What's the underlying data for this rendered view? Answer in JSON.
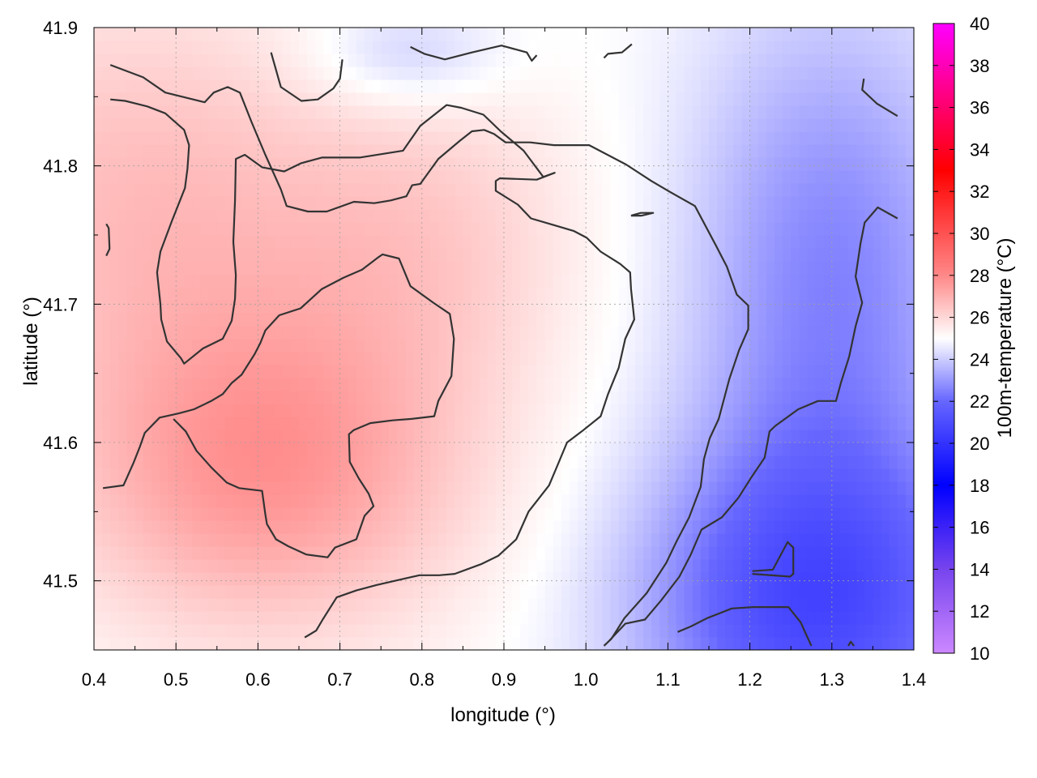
{
  "chart_data": {
    "type": "heatmap",
    "title": "",
    "xlabel": "longitude (°)",
    "ylabel": "latitude (°)",
    "colorbar_label": "100m-temperature (°C)",
    "xlim": [
      0.4,
      1.4
    ],
    "ylim": [
      41.45,
      41.9
    ],
    "x_ticks": [
      0.4,
      0.5,
      0.6,
      0.7,
      0.8,
      0.9,
      1.0,
      1.1,
      1.2,
      1.3,
      1.4
    ],
    "x_tick_labels": [
      "0.4",
      "0.5",
      "0.6",
      "0.7",
      "0.8",
      "0.9",
      "1.0",
      "1.1",
      "1.2",
      "1.3",
      "1.4"
    ],
    "y_ticks": [
      41.5,
      41.6,
      41.7,
      41.8,
      41.9
    ],
    "y_tick_labels": [
      "41.5",
      "41.6",
      "41.7",
      "41.8",
      "41.9"
    ],
    "colorbar_range": [
      10,
      40
    ],
    "colorbar_ticks": [
      10,
      12,
      14,
      16,
      18,
      20,
      22,
      24,
      26,
      28,
      30,
      32,
      34,
      36,
      38,
      40
    ],
    "colorbar_tick_labels": [
      "10",
      "12",
      "14",
      "16",
      "18",
      "20",
      "22",
      "24",
      "26",
      "28",
      "30",
      "32",
      "34",
      "36",
      "38",
      "40"
    ],
    "colormap": [
      {
        "value": 10,
        "color": "#cc88ff"
      },
      {
        "value": 14,
        "color": "#7744ee"
      },
      {
        "value": 18,
        "color": "#0000ff"
      },
      {
        "value": 22,
        "color": "#6666ff"
      },
      {
        "value": 25,
        "color": "#ffffff"
      },
      {
        "value": 28,
        "color": "#ff8888"
      },
      {
        "value": 33,
        "color": "#ff0000"
      },
      {
        "value": 40,
        "color": "#ff00ff"
      }
    ],
    "grid": true,
    "contour_color": "#333333",
    "field": {
      "description_free": true,
      "base": 25,
      "blobs": [
        {
          "lon": 0.61,
          "lat": 41.58,
          "amp": 2.6,
          "sx": 0.25,
          "sy": 0.12
        },
        {
          "lon": 0.45,
          "lat": 41.78,
          "amp": 1.6,
          "sx": 0.25,
          "sy": 0.15
        },
        {
          "lon": 0.8,
          "lat": 41.75,
          "amp": 1.2,
          "sx": 0.2,
          "sy": 0.12
        },
        {
          "lon": 1.28,
          "lat": 41.48,
          "amp": -3.8,
          "sx": 0.22,
          "sy": 0.12
        },
        {
          "lon": 1.3,
          "lat": 41.72,
          "amp": -2.4,
          "sx": 0.18,
          "sy": 0.2
        },
        {
          "lon": 0.78,
          "lat": 41.88,
          "amp": -1.2,
          "sx": 0.12,
          "sy": 0.04
        }
      ]
    },
    "contours": [
      [
        [
          0.42,
          41.873
        ],
        [
          0.46,
          41.864
        ],
        [
          0.487,
          41.853
        ],
        [
          0.535,
          41.846
        ],
        [
          0.546,
          41.853
        ],
        [
          0.563,
          41.857
        ],
        [
          0.578,
          41.853
        ],
        [
          0.592,
          41.832
        ],
        [
          0.609,
          41.808
        ],
        [
          0.628,
          41.783
        ],
        [
          0.635,
          41.771
        ],
        [
          0.661,
          41.767
        ],
        [
          0.684,
          41.767
        ],
        [
          0.717,
          41.774
        ],
        [
          0.742,
          41.773
        ],
        [
          0.762,
          41.775
        ],
        [
          0.781,
          41.778
        ],
        [
          0.788,
          41.786
        ],
        [
          0.798,
          41.787
        ],
        [
          0.82,
          41.805
        ],
        [
          0.846,
          41.818
        ],
        [
          0.861,
          41.825
        ],
        [
          0.876,
          41.826
        ],
        [
          0.888,
          41.823
        ],
        [
          0.902,
          41.817
        ],
        [
          0.932,
          41.817
        ],
        [
          0.961,
          41.815
        ],
        [
          1.004,
          41.815
        ],
        [
          1.049,
          41.801
        ],
        [
          1.08,
          41.789
        ],
        [
          1.103,
          41.781
        ],
        [
          1.133,
          41.771
        ],
        [
          1.159,
          41.742
        ],
        [
          1.172,
          41.727
        ],
        [
          1.184,
          41.707
        ],
        [
          1.198,
          41.699
        ],
        [
          1.198,
          41.682
        ],
        [
          1.187,
          41.667
        ],
        [
          1.175,
          41.646
        ],
        [
          1.162,
          41.617
        ],
        [
          1.151,
          41.603
        ],
        [
          1.144,
          41.588
        ],
        [
          1.14,
          41.568
        ],
        [
          1.126,
          41.546
        ],
        [
          1.111,
          41.529
        ],
        [
          1.098,
          41.513
        ],
        [
          1.074,
          41.491
        ],
        [
          1.047,
          41.473
        ],
        [
          1.031,
          41.458
        ],
        [
          1.022,
          41.453
        ]
      ],
      [
        [
          0.42,
          41.848
        ],
        [
          0.438,
          41.847
        ],
        [
          0.465,
          41.843
        ],
        [
          0.487,
          41.838
        ],
        [
          0.51,
          41.826
        ],
        [
          0.516,
          41.815
        ],
        [
          0.514,
          41.798
        ],
        [
          0.511,
          41.784
        ],
        [
          0.495,
          41.76
        ],
        [
          0.481,
          41.738
        ],
        [
          0.477,
          41.723
        ],
        [
          0.481,
          41.7
        ],
        [
          0.482,
          41.689
        ],
        [
          0.489,
          41.673
        ],
        [
          0.506,
          41.661
        ],
        [
          0.51,
          41.657
        ],
        [
          0.533,
          41.668
        ],
        [
          0.557,
          41.675
        ],
        [
          0.568,
          41.688
        ],
        [
          0.572,
          41.704
        ],
        [
          0.573,
          41.721
        ],
        [
          0.57,
          41.745
        ],
        [
          0.572,
          41.775
        ],
        [
          0.573,
          41.805
        ],
        [
          0.584,
          41.808
        ],
        [
          0.605,
          41.799
        ],
        [
          0.632,
          41.796
        ],
        [
          0.653,
          41.802
        ],
        [
          0.678,
          41.806
        ],
        [
          0.724,
          41.806
        ],
        [
          0.777,
          41.811
        ],
        [
          0.798,
          41.829
        ],
        [
          0.83,
          41.844
        ],
        [
          0.848,
          41.842
        ],
        [
          0.875,
          41.837
        ],
        [
          0.896,
          41.825
        ],
        [
          0.924,
          41.811
        ],
        [
          0.948,
          41.792
        ],
        [
          0.962,
          41.795
        ],
        [
          0.94,
          41.79
        ],
        [
          0.895,
          41.791
        ],
        [
          0.89,
          41.789
        ],
        [
          0.89,
          41.782
        ],
        [
          0.917,
          41.772
        ],
        [
          0.933,
          41.762
        ],
        [
          0.962,
          41.757
        ],
        [
          0.985,
          41.753
        ],
        [
          1.001,
          41.748
        ],
        [
          1.018,
          41.738
        ],
        [
          1.042,
          41.729
        ],
        [
          1.054,
          41.723
        ],
        [
          1.055,
          41.711
        ],
        [
          1.059,
          41.689
        ],
        [
          1.048,
          41.675
        ],
        [
          1.04,
          41.654
        ],
        [
          1.027,
          41.635
        ],
        [
          1.018,
          41.619
        ],
        [
          0.995,
          41.608
        ],
        [
          0.977,
          41.6
        ],
        [
          0.965,
          41.583
        ],
        [
          0.955,
          41.569
        ],
        [
          0.93,
          41.55
        ],
        [
          0.915,
          41.53
        ],
        [
          0.893,
          41.518
        ],
        [
          0.872,
          41.512
        ],
        [
          0.84,
          41.505
        ],
        [
          0.821,
          41.504
        ],
        [
          0.797,
          41.504
        ],
        [
          0.767,
          41.5
        ],
        [
          0.745,
          41.497
        ],
        [
          0.72,
          41.493
        ],
        [
          0.696,
          41.488
        ],
        [
          0.679,
          41.472
        ],
        [
          0.671,
          41.464
        ],
        [
          0.657,
          41.459
        ]
      ],
      [
        [
          0.415,
          41.758
        ],
        [
          0.418,
          41.755
        ],
        [
          0.419,
          41.74
        ],
        [
          0.415,
          41.735
        ]
      ],
      [
        [
          0.411,
          41.567
        ],
        [
          0.436,
          41.569
        ],
        [
          0.448,
          41.585
        ],
        [
          0.456,
          41.597
        ],
        [
          0.462,
          41.607
        ],
        [
          0.48,
          41.618
        ],
        [
          0.503,
          41.621
        ],
        [
          0.522,
          41.624
        ],
        [
          0.543,
          41.63
        ],
        [
          0.557,
          41.635
        ],
        [
          0.568,
          41.643
        ],
        [
          0.58,
          41.649
        ],
        [
          0.596,
          41.664
        ],
        [
          0.603,
          41.672
        ],
        [
          0.609,
          41.681
        ],
        [
          0.626,
          41.692
        ],
        [
          0.652,
          41.697
        ],
        [
          0.678,
          41.711
        ],
        [
          0.704,
          41.719
        ],
        [
          0.727,
          41.725
        ],
        [
          0.747,
          41.734
        ],
        [
          0.752,
          41.736
        ],
        [
          0.772,
          41.733
        ],
        [
          0.786,
          41.713
        ],
        [
          0.814,
          41.701
        ],
        [
          0.834,
          41.693
        ],
        [
          0.839,
          41.675
        ],
        [
          0.836,
          41.648
        ],
        [
          0.82,
          41.63
        ],
        [
          0.815,
          41.619
        ],
        [
          0.786,
          41.617
        ],
        [
          0.764,
          41.616
        ],
        [
          0.737,
          41.614
        ],
        [
          0.717,
          41.609
        ],
        [
          0.711,
          41.606
        ],
        [
          0.712,
          41.586
        ],
        [
          0.723,
          41.574
        ],
        [
          0.735,
          41.563
        ],
        [
          0.741,
          41.554
        ],
        [
          0.73,
          41.547
        ],
        [
          0.72,
          41.53
        ],
        [
          0.694,
          41.524
        ],
        [
          0.685,
          41.517
        ],
        [
          0.659,
          41.519
        ],
        [
          0.637,
          41.525
        ],
        [
          0.622,
          41.53
        ],
        [
          0.611,
          41.541
        ],
        [
          0.609,
          41.548
        ],
        [
          0.605,
          41.565
        ],
        [
          0.577,
          41.567
        ],
        [
          0.562,
          41.571
        ],
        [
          0.543,
          41.582
        ],
        [
          0.525,
          41.594
        ],
        [
          0.512,
          41.608
        ],
        [
          0.497,
          41.617
        ]
      ],
      [
        [
          0.616,
          41.882
        ],
        [
          0.628,
          41.857
        ],
        [
          0.653,
          41.847
        ],
        [
          0.673,
          41.848
        ],
        [
          0.692,
          41.856
        ],
        [
          0.7,
          41.863
        ],
        [
          0.703,
          41.877
        ]
      ],
      [
        [
          0.786,
          41.886
        ],
        [
          0.803,
          41.881
        ],
        [
          0.828,
          41.877
        ],
        [
          0.861,
          41.882
        ],
        [
          0.897,
          41.887
        ],
        [
          0.928,
          41.882
        ],
        [
          0.934,
          41.876
        ],
        [
          0.94,
          41.88
        ]
      ],
      [
        [
          1.022,
          41.878
        ],
        [
          1.027,
          41.881
        ],
        [
          1.044,
          41.882
        ],
        [
          1.056,
          41.888
        ]
      ],
      [
        [
          1.339,
          41.863
        ],
        [
          1.337,
          41.855
        ],
        [
          1.355,
          41.845
        ],
        [
          1.38,
          41.836
        ]
      ],
      [
        [
          1.055,
          41.764
        ],
        [
          1.067,
          41.766
        ],
        [
          1.082,
          41.766
        ],
        [
          1.068,
          41.764
        ],
        [
          1.055,
          41.764
        ]
      ],
      [
        [
          1.38,
          41.762
        ],
        [
          1.356,
          41.77
        ],
        [
          1.34,
          41.759
        ],
        [
          1.335,
          41.744
        ],
        [
          1.329,
          41.72
        ],
        [
          1.337,
          41.701
        ],
        [
          1.329,
          41.684
        ],
        [
          1.321,
          41.662
        ],
        [
          1.311,
          41.643
        ],
        [
          1.305,
          41.63
        ],
        [
          1.283,
          41.63
        ],
        [
          1.259,
          41.624
        ],
        [
          1.231,
          41.612
        ],
        [
          1.224,
          41.608
        ],
        [
          1.218,
          41.589
        ],
        [
          1.202,
          41.575
        ],
        [
          1.186,
          41.56
        ],
        [
          1.166,
          41.546
        ],
        [
          1.141,
          41.537
        ],
        [
          1.128,
          41.519
        ],
        [
          1.114,
          41.503
        ],
        [
          1.092,
          41.486
        ],
        [
          1.072,
          41.472
        ],
        [
          1.048,
          41.469
        ],
        [
          1.029,
          41.457
        ]
      ],
      [
        [
          1.203,
          41.507
        ],
        [
          1.228,
          41.508
        ],
        [
          1.246,
          41.528
        ],
        [
          1.253,
          41.524
        ],
        [
          1.253,
          41.505
        ],
        [
          1.249,
          41.503
        ],
        [
          1.203,
          41.505
        ]
      ],
      [
        [
          1.112,
          41.463
        ],
        [
          1.128,
          41.467
        ],
        [
          1.148,
          41.473
        ],
        [
          1.178,
          41.48
        ],
        [
          1.204,
          41.481
        ],
        [
          1.247,
          41.481
        ],
        [
          1.262,
          41.47
        ],
        [
          1.268,
          41.462
        ],
        [
          1.275,
          41.453
        ]
      ],
      [
        [
          1.32,
          41.453
        ],
        [
          1.323,
          41.456
        ],
        [
          1.327,
          41.453
        ]
      ]
    ]
  }
}
